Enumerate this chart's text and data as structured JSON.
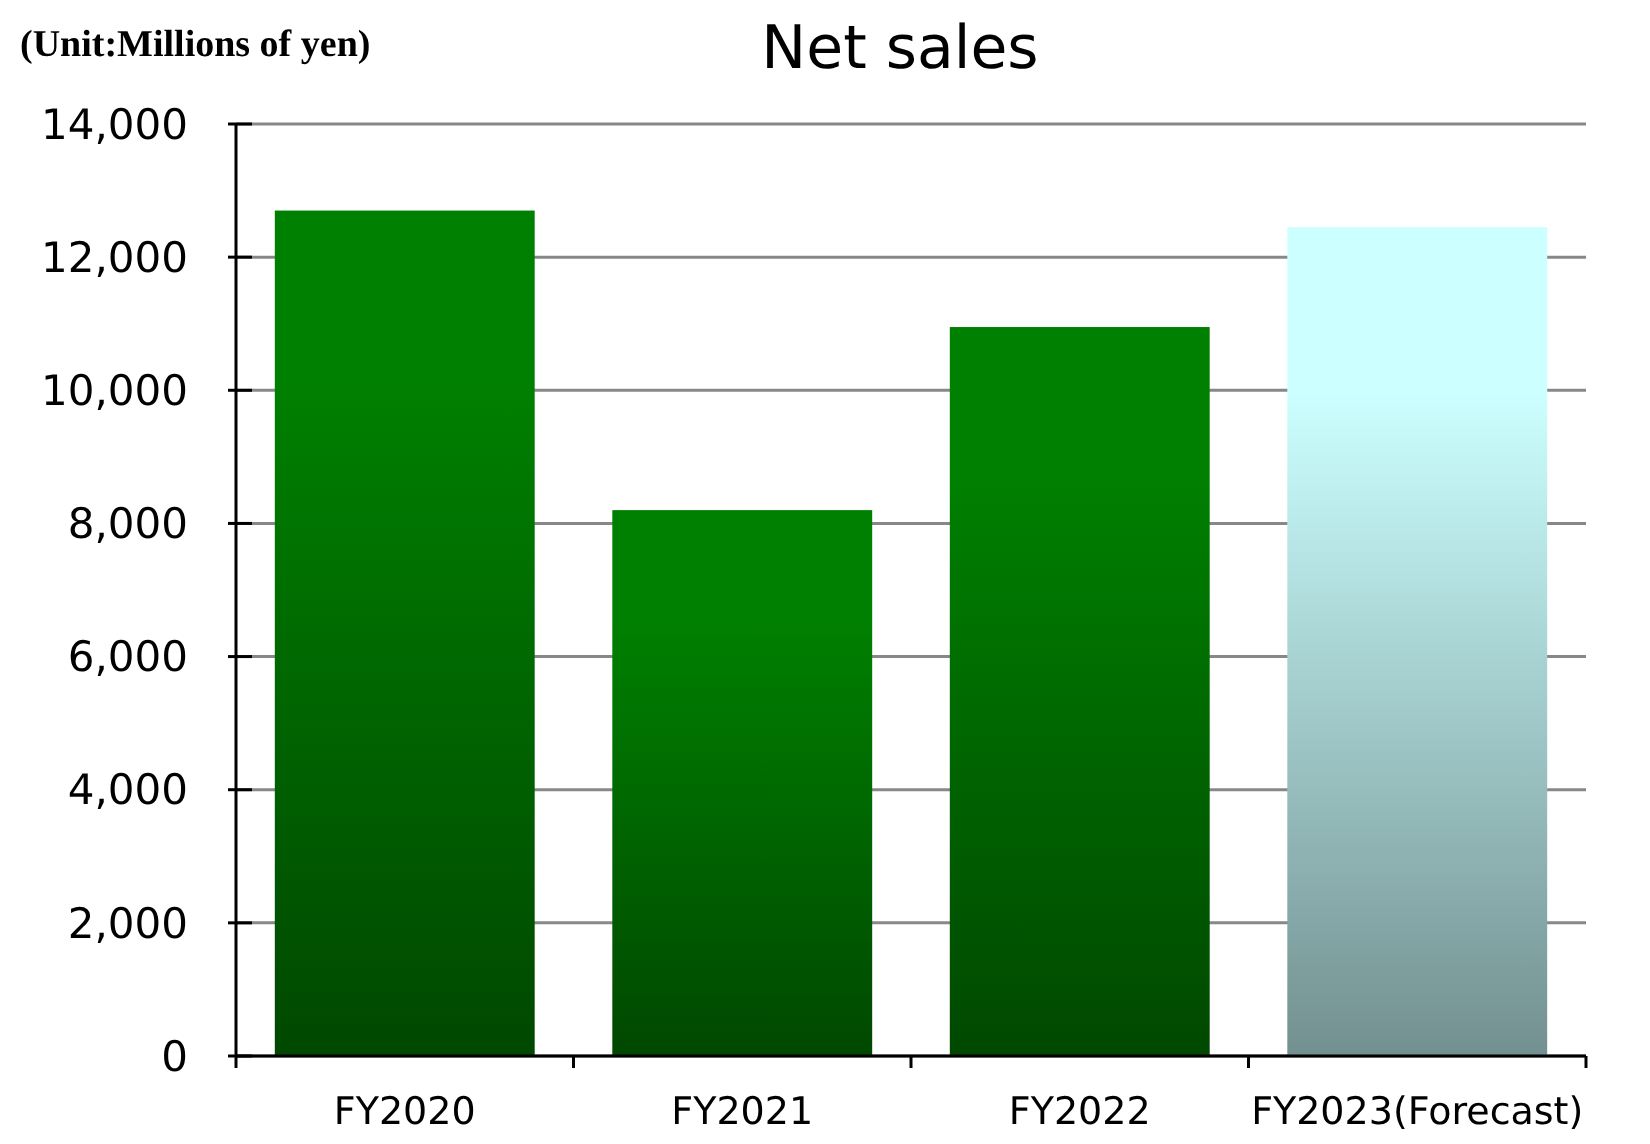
{
  "chart_data": {
    "type": "bar",
    "title": "Net sales",
    "annotations": [
      "(Unit:Millions of yen)"
    ],
    "categories": [
      "FY2020",
      "FY2021",
      "FY2022",
      "FY2023(Forecast)"
    ],
    "values": [
      12700,
      8200,
      10950,
      12450
    ],
    "colors": [
      "#008000",
      "#008000",
      "#008000",
      "#ccffff"
    ],
    "ylim": [
      0,
      14000
    ],
    "yticks": [
      0,
      {
        "value": 2000,
        "label": "2,000"
      },
      {
        "value": 4000,
        "label": "4,000"
      },
      {
        "value": 6000,
        "label": "6,000"
      },
      {
        "value": 8000,
        "label": "8,000"
      },
      {
        "value": 10000,
        "label": "10,000"
      },
      {
        "value": 12000,
        "label": "12,000"
      },
      {
        "value": 14000,
        "label": "14,000"
      }
    ],
    "grid": "y"
  }
}
